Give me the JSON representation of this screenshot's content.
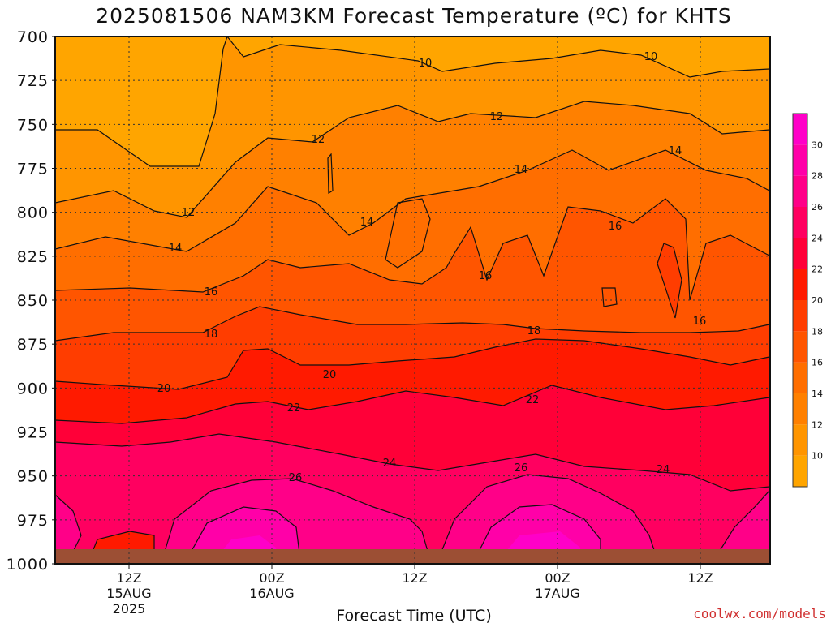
{
  "title": "2025081506 NAM3KM Forecast Temperature (ºC) for KHTS",
  "credit": "coolwx.com/models",
  "chart_data": {
    "type": "heatmap",
    "title": "2025081506 NAM3KM Forecast Temperature (ºC) for KHTS",
    "xlabel": "Forecast Time (UTC)",
    "ylabel": "",
    "y_scale": "pressure (hPa), inverted",
    "ylim": [
      1000,
      700
    ],
    "y_ticks": [
      "700",
      "725",
      "750",
      "775",
      "800",
      "825",
      "850",
      "875",
      "900",
      "925",
      "950",
      "975",
      "1000"
    ],
    "x_ticks": [
      {
        "label": "12Z",
        "sub1": "15AUG",
        "sub2": "2025"
      },
      {
        "label": "00Z",
        "sub1": "16AUG",
        "sub2": ""
      },
      {
        "label": "12Z",
        "sub1": "",
        "sub2": ""
      },
      {
        "label": "00Z",
        "sub1": "17AUG",
        "sub2": ""
      },
      {
        "label": "12Z",
        "sub1": "",
        "sub2": ""
      }
    ],
    "colorbar": {
      "levels": [
        8,
        10,
        12,
        14,
        16,
        18,
        20,
        22,
        24,
        26,
        28,
        30,
        32
      ],
      "tick_labels": [
        "10",
        "12",
        "14",
        "16",
        "18",
        "20",
        "22",
        "24",
        "26",
        "28",
        "30"
      ],
      "colors": [
        "#ffa500",
        "#ff9500",
        "#ff8000",
        "#ff6e00",
        "#ff5500",
        "#ff3d00",
        "#ff1a00",
        "#ff0038",
        "#ff0060",
        "#ff0088",
        "#ff00a8",
        "#ff00c8"
      ]
    },
    "contour_labels": [
      "10",
      "10",
      "12",
      "12",
      "12",
      "14",
      "14",
      "14",
      "14",
      "16",
      "16",
      "16",
      "16",
      "18",
      "18",
      "20",
      "20",
      "22",
      "22",
      "24",
      "24",
      "26",
      "26"
    ],
    "grid": true,
    "legend": "right colorbar"
  }
}
